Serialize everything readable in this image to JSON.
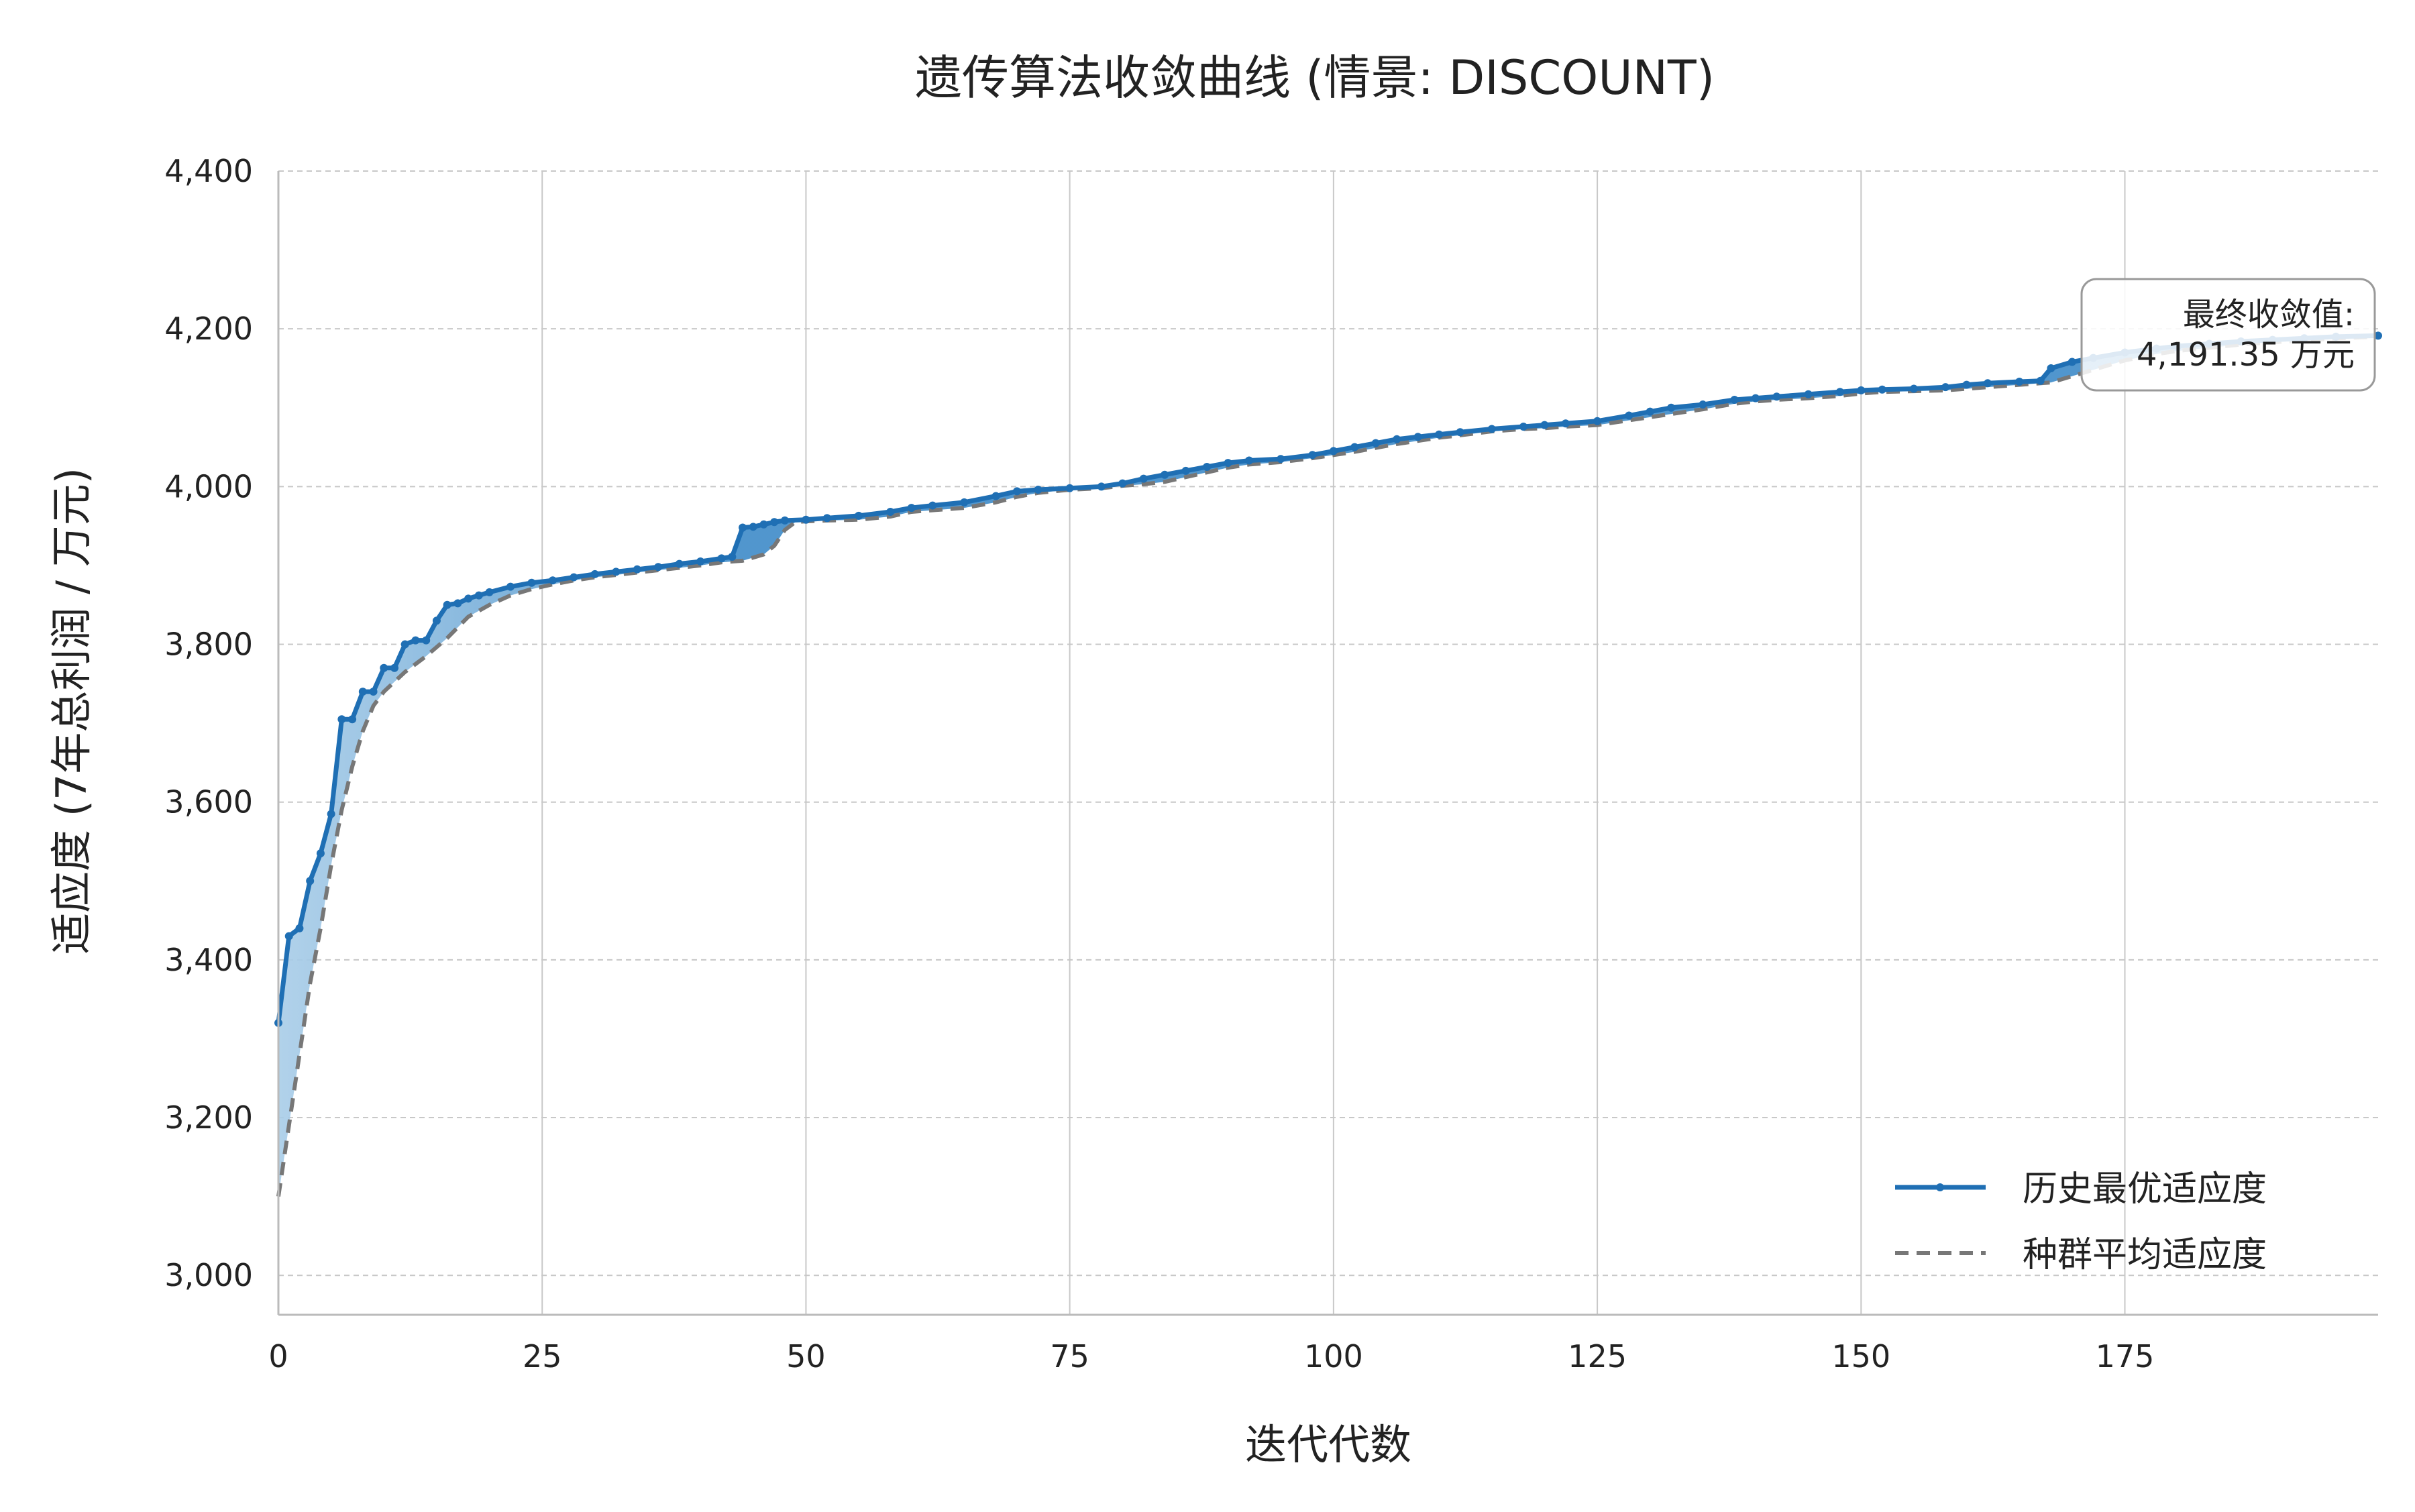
{
  "chart_data": {
    "type": "line",
    "title": "遗传算法收敛曲线 (情景: DISCOUNT)",
    "xlabel": "迭代代数",
    "ylabel": "适应度 (7年总利润 / 万元)",
    "xlim": [
      0,
      199
    ],
    "ylim": [
      2950,
      4400
    ],
    "x_ticks": [
      0,
      25,
      50,
      75,
      100,
      125,
      150,
      175
    ],
    "x_tick_labels": [
      "0",
      "25",
      "50",
      "75",
      "100",
      "125",
      "150",
      "175"
    ],
    "y_ticks": [
      3000,
      3200,
      3400,
      3600,
      3800,
      4000,
      4200,
      4400
    ],
    "y_tick_labels": [
      "3,000",
      "3,200",
      "3,400",
      "3,600",
      "3,800",
      "4,000",
      "4,200",
      "4,400"
    ],
    "grid": true,
    "legend_position": "bottom-right",
    "series": [
      {
        "name": "历史最优适应度",
        "color": "#1f6fb4",
        "style": "solid-with-markers",
        "points": [
          [
            0,
            3320
          ],
          [
            1,
            3430
          ],
          [
            2,
            3440
          ],
          [
            3,
            3500
          ],
          [
            4,
            3535
          ],
          [
            5,
            3585
          ],
          [
            6,
            3705
          ],
          [
            7,
            3705
          ],
          [
            8,
            3740
          ],
          [
            9,
            3740
          ],
          [
            10,
            3770
          ],
          [
            11,
            3770
          ],
          [
            12,
            3800
          ],
          [
            13,
            3805
          ],
          [
            14,
            3805
          ],
          [
            15,
            3830
          ],
          [
            16,
            3850
          ],
          [
            17,
            3852
          ],
          [
            18,
            3858
          ],
          [
            19,
            3862
          ],
          [
            20,
            3866
          ],
          [
            22,
            3873
          ],
          [
            24,
            3878
          ],
          [
            26,
            3881
          ],
          [
            28,
            3885
          ],
          [
            30,
            3889
          ],
          [
            32,
            3892
          ],
          [
            34,
            3895
          ],
          [
            36,
            3898
          ],
          [
            38,
            3902
          ],
          [
            40,
            3905
          ],
          [
            42,
            3909
          ],
          [
            43,
            3911
          ],
          [
            44,
            3948
          ],
          [
            45,
            3949
          ],
          [
            46,
            3952
          ],
          [
            47,
            3955
          ],
          [
            48,
            3957
          ],
          [
            50,
            3958
          ],
          [
            52,
            3960
          ],
          [
            55,
            3963
          ],
          [
            58,
            3968
          ],
          [
            60,
            3973
          ],
          [
            62,
            3976
          ],
          [
            65,
            3980
          ],
          [
            68,
            3988
          ],
          [
            70,
            3994
          ],
          [
            72,
            3996
          ],
          [
            75,
            3998
          ],
          [
            78,
            4000
          ],
          [
            80,
            4004
          ],
          [
            82,
            4010
          ],
          [
            84,
            4015
          ],
          [
            86,
            4020
          ],
          [
            88,
            4025
          ],
          [
            90,
            4030
          ],
          [
            92,
            4033
          ],
          [
            95,
            4035
          ],
          [
            98,
            4040
          ],
          [
            100,
            4045
          ],
          [
            102,
            4050
          ],
          [
            104,
            4055
          ],
          [
            106,
            4060
          ],
          [
            108,
            4063
          ],
          [
            110,
            4066
          ],
          [
            112,
            4069
          ],
          [
            115,
            4073
          ],
          [
            118,
            4076
          ],
          [
            120,
            4078
          ],
          [
            122,
            4080
          ],
          [
            125,
            4083
          ],
          [
            128,
            4090
          ],
          [
            130,
            4095
          ],
          [
            132,
            4100
          ],
          [
            135,
            4104
          ],
          [
            138,
            4110
          ],
          [
            140,
            4112
          ],
          [
            142,
            4114
          ],
          [
            145,
            4117
          ],
          [
            148,
            4120
          ],
          [
            150,
            4122
          ],
          [
            152,
            4123
          ],
          [
            155,
            4124
          ],
          [
            158,
            4126
          ],
          [
            160,
            4129
          ],
          [
            162,
            4131
          ],
          [
            165,
            4133
          ],
          [
            167,
            4134
          ],
          [
            168,
            4150
          ],
          [
            170,
            4158
          ],
          [
            172,
            4163
          ],
          [
            175,
            4170
          ],
          [
            178,
            4175
          ],
          [
            180,
            4178
          ],
          [
            183,
            4181
          ],
          [
            186,
            4184
          ],
          [
            189,
            4186
          ],
          [
            192,
            4188
          ],
          [
            195,
            4190
          ],
          [
            199,
            4191.35
          ]
        ]
      },
      {
        "name": "种群平均适应度",
        "color": "#777777",
        "style": "dashed",
        "points": [
          [
            0,
            3100
          ],
          [
            1,
            3190
          ],
          [
            2,
            3280
          ],
          [
            3,
            3370
          ],
          [
            4,
            3440
          ],
          [
            5,
            3520
          ],
          [
            6,
            3590
          ],
          [
            7,
            3645
          ],
          [
            8,
            3690
          ],
          [
            9,
            3722
          ],
          [
            10,
            3740
          ],
          [
            12,
            3765
          ],
          [
            14,
            3785
          ],
          [
            16,
            3808
          ],
          [
            18,
            3835
          ],
          [
            20,
            3850
          ],
          [
            22,
            3862
          ],
          [
            24,
            3870
          ],
          [
            26,
            3876
          ],
          [
            28,
            3881
          ],
          [
            30,
            3885
          ],
          [
            32,
            3888
          ],
          [
            34,
            3891
          ],
          [
            36,
            3894
          ],
          [
            38,
            3897
          ],
          [
            40,
            3900
          ],
          [
            42,
            3904
          ],
          [
            44,
            3906
          ],
          [
            46,
            3914
          ],
          [
            47,
            3925
          ],
          [
            48,
            3945
          ],
          [
            49,
            3955
          ],
          [
            50,
            3956
          ],
          [
            52,
            3957
          ],
          [
            55,
            3958
          ],
          [
            58,
            3962
          ],
          [
            60,
            3968
          ],
          [
            62,
            3970
          ],
          [
            65,
            3973
          ],
          [
            68,
            3980
          ],
          [
            70,
            3987
          ],
          [
            72,
            3992
          ],
          [
            75,
            3996
          ],
          [
            78,
            3998
          ],
          [
            80,
            4001
          ],
          [
            82,
            4003
          ],
          [
            84,
            4006
          ],
          [
            86,
            4012
          ],
          [
            88,
            4018
          ],
          [
            90,
            4024
          ],
          [
            92,
            4028
          ],
          [
            95,
            4031
          ],
          [
            98,
            4036
          ],
          [
            100,
            4040
          ],
          [
            102,
            4044
          ],
          [
            104,
            4049
          ],
          [
            106,
            4054
          ],
          [
            108,
            4058
          ],
          [
            110,
            4062
          ],
          [
            112,
            4065
          ],
          [
            115,
            4070
          ],
          [
            118,
            4073
          ],
          [
            120,
            4074
          ],
          [
            122,
            4076
          ],
          [
            125,
            4078
          ],
          [
            128,
            4084
          ],
          [
            130,
            4088
          ],
          [
            132,
            4092
          ],
          [
            135,
            4098
          ],
          [
            138,
            4105
          ],
          [
            140,
            4108
          ],
          [
            142,
            4110
          ],
          [
            145,
            4112
          ],
          [
            148,
            4115
          ],
          [
            150,
            4118
          ],
          [
            152,
            4120
          ],
          [
            155,
            4121
          ],
          [
            158,
            4122
          ],
          [
            160,
            4124
          ],
          [
            162,
            4126
          ],
          [
            165,
            4129
          ],
          [
            168,
            4132
          ],
          [
            170,
            4140
          ],
          [
            172,
            4148
          ],
          [
            175,
            4160
          ],
          [
            178,
            4168
          ],
          [
            180,
            4172
          ],
          [
            183,
            4176
          ],
          [
            186,
            4180
          ],
          [
            189,
            4183
          ],
          [
            192,
            4185
          ],
          [
            195,
            4188
          ],
          [
            199,
            4190
          ]
        ]
      }
    ],
    "annotation": {
      "line1": "最终收敛值:",
      "line2": "4,191.35 万元",
      "value": 4191.35
    }
  },
  "colors": {
    "best_line": "#1f6fb4",
    "avg_line": "#777777",
    "fill_light": "#a9cde8",
    "fill_dark": "#3e8bc8",
    "grid": "#c8c8c8",
    "axis": "#bbbbbb"
  }
}
